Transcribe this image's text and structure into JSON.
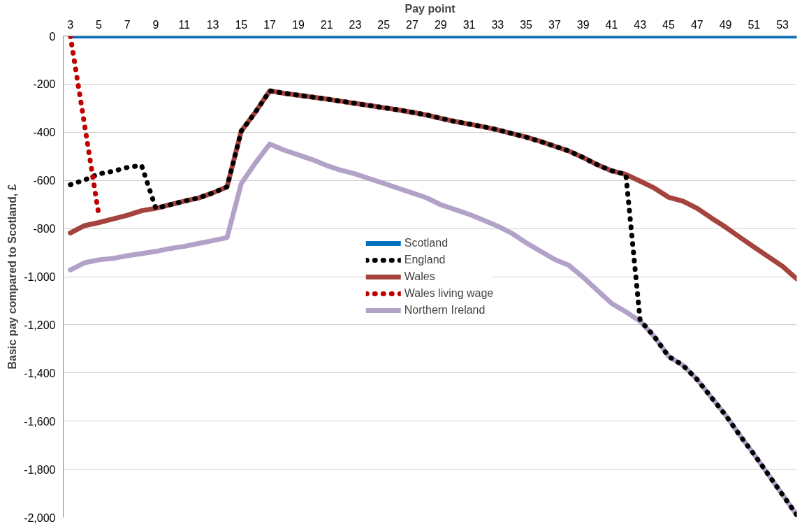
{
  "chart_data": {
    "type": "line",
    "xlabel": "Pay point",
    "ylabel": "Basic pay compared to Scotland, £",
    "x": [
      3,
      4,
      5,
      6,
      7,
      8,
      9,
      10,
      11,
      12,
      13,
      14,
      15,
      16,
      17,
      18,
      19,
      20,
      21,
      22,
      23,
      24,
      25,
      26,
      27,
      28,
      29,
      30,
      31,
      32,
      33,
      34,
      35,
      36,
      37,
      38,
      39,
      40,
      41,
      42,
      43,
      44,
      45,
      46,
      47,
      48,
      49,
      50,
      51,
      52,
      53,
      54
    ],
    "series": [
      {
        "name": "Scotland",
        "color": "#0070c0",
        "line_style": "solid",
        "values": [
          0,
          0,
          0,
          0,
          0,
          0,
          0,
          0,
          0,
          0,
          0,
          0,
          0,
          0,
          0,
          0,
          0,
          0,
          0,
          0,
          0,
          0,
          0,
          0,
          0,
          0,
          0,
          0,
          0,
          0,
          0,
          0,
          0,
          0,
          0,
          0,
          0,
          0,
          0,
          0,
          0,
          0,
          0,
          0,
          0,
          0,
          0,
          0,
          0,
          0,
          0,
          0
        ]
      },
      {
        "name": "England",
        "color": "#000000",
        "line_style": "dotted",
        "values": [
          -618,
          -598,
          -573,
          -562,
          -546,
          -538,
          -716,
          -701,
          -686,
          -673,
          -652,
          -627,
          -395,
          -316,
          -228,
          -238,
          -246,
          -254,
          -262,
          -271,
          -280,
          -289,
          -298,
          -307,
          -317,
          -328,
          -342,
          -355,
          -366,
          -377,
          -390,
          -405,
          -420,
          -438,
          -458,
          -478,
          -505,
          -535,
          -560,
          -575,
          -1180,
          -1249,
          -1331,
          -1368,
          -1427,
          -1501,
          -1575,
          -1659,
          -1738,
          -1822,
          -1906,
          -1990
        ]
      },
      {
        "name": "Wales",
        "color": "#a5433e",
        "line_style": "solid",
        "values": [
          -818,
          -788,
          -775,
          -760,
          -745,
          -726,
          -716,
          -701,
          -686,
          -673,
          -652,
          -627,
          -395,
          -316,
          -228,
          -238,
          -246,
          -254,
          -262,
          -271,
          -280,
          -289,
          -298,
          -307,
          -317,
          -328,
          -342,
          -355,
          -366,
          -377,
          -390,
          -405,
          -420,
          -438,
          -458,
          -478,
          -505,
          -535,
          -560,
          -575,
          -603,
          -632,
          -670,
          -686,
          -716,
          -756,
          -794,
          -836,
          -877,
          -917,
          -957,
          -1009
        ]
      },
      {
        "name": "Wales living wage",
        "color": "#c00000",
        "line_style": "dotted",
        "values": [
          0,
          -370,
          -745,
          null,
          null,
          null,
          null,
          null,
          null,
          null,
          null,
          null,
          null,
          null,
          null,
          null,
          null,
          null,
          null,
          null,
          null,
          null,
          null,
          null,
          null,
          null,
          null,
          null,
          null,
          null,
          null,
          null,
          null,
          null,
          null,
          null,
          null,
          null,
          null,
          null,
          null,
          null,
          null,
          null,
          null,
          null,
          null,
          null,
          null,
          null,
          null,
          null
        ]
      },
      {
        "name": "Northern Ireland",
        "color": "#b3a2c7",
        "line_style": "solid",
        "values": [
          -972,
          -942,
          -930,
          -924,
          -913,
          -904,
          -895,
          -883,
          -874,
          -862,
          -850,
          -838,
          -613,
          -527,
          -449,
          -474,
          -494,
          -514,
          -538,
          -558,
          -573,
          -593,
          -612,
          -632,
          -652,
          -672,
          -701,
          -721,
          -741,
          -765,
          -790,
          -820,
          -859,
          -894,
          -928,
          -953,
          -1002,
          -1057,
          -1111,
          -1146,
          -1185,
          -1249,
          -1331,
          -1368,
          -1427,
          -1501,
          -1575,
          -1659,
          -1738,
          -1822,
          -1906,
          -1990
        ]
      }
    ],
    "xlim": [
      2.5,
      54
    ],
    "xticks": [
      3,
      5,
      7,
      9,
      11,
      13,
      15,
      17,
      19,
      21,
      23,
      25,
      27,
      29,
      31,
      33,
      35,
      37,
      39,
      41,
      43,
      45,
      47,
      49,
      51,
      53
    ],
    "ylim": [
      -2000,
      0
    ],
    "yticks": [
      0,
      -200,
      -400,
      -600,
      -800,
      {
        "value": -1000,
        "label": "-1,000"
      },
      {
        "value": -1200,
        "label": "-1,200"
      },
      {
        "value": -1400,
        "label": "-1,400"
      },
      {
        "value": -1600,
        "label": "-1,600"
      },
      {
        "value": -1800,
        "label": "-1,800"
      },
      {
        "value": -2000,
        "label": "-2,000"
      }
    ],
    "grid": "y",
    "legend": "center"
  }
}
